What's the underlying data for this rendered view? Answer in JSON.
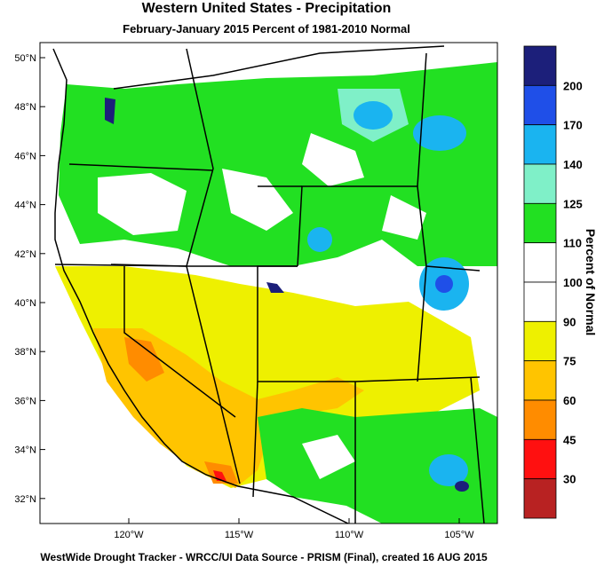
{
  "title": "Western United States - Precipitation",
  "subtitle": "February-January 2015  Percent of 1981-2010 Normal",
  "footer": "WestWide Drought Tracker - WRCC/UI  Data Source - PRISM (Final), created 16 AUG 2015",
  "map": {
    "lat_labels": [
      "50°N",
      "48°N",
      "46°N",
      "44°N",
      "42°N",
      "40°N",
      "38°N",
      "36°N",
      "34°N",
      "32°N"
    ],
    "lon_labels": [
      "120°W",
      "115°W",
      "110°W",
      "105°W"
    ]
  },
  "legend": {
    "title": "Percent of Normal",
    "colors": [
      "#1c1f7a",
      "#1f4fe8",
      "#1ab4f0",
      "#7ff0c8",
      "#22e022",
      "#ffffff",
      "#ffffff",
      "#eef000",
      "#ffc400",
      "#ff8c00",
      "#ff1010",
      "#b82222"
    ],
    "labels": [
      "200",
      "170",
      "140",
      "125",
      "110",
      "100",
      "90",
      "75",
      "60",
      "45",
      "30"
    ]
  }
}
